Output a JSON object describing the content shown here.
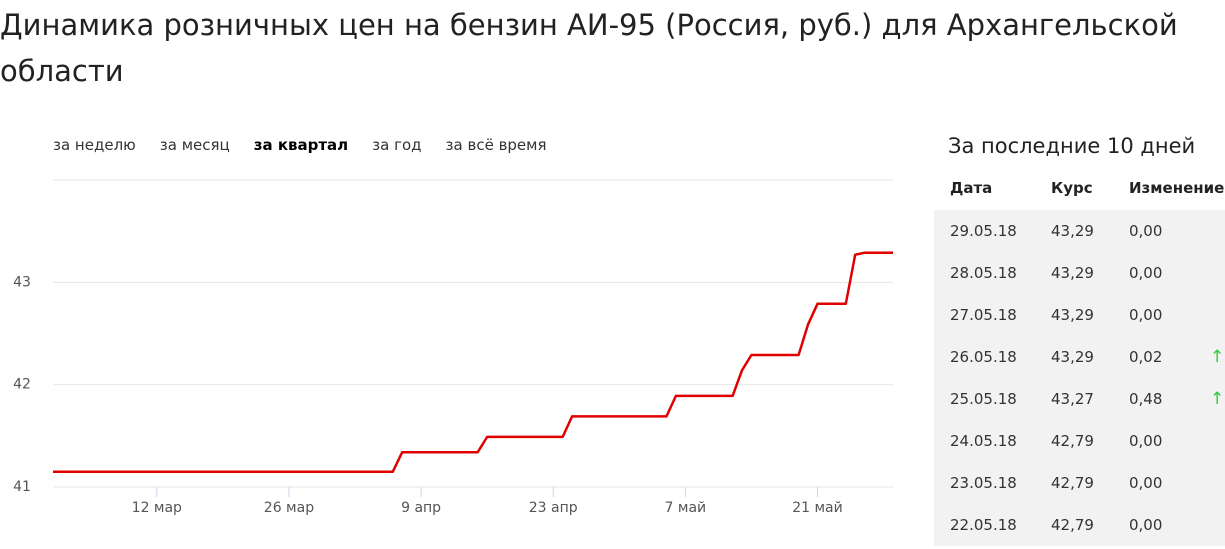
{
  "header": {
    "title": "Динамика розничных цен на бензин АИ-95 (Россия, руб.) для Архангельской области"
  },
  "tabs": {
    "items": [
      "за неделю",
      "за месяц",
      "за квартал",
      "за год",
      "за всё время"
    ],
    "active": 2
  },
  "chart_data": {
    "type": "line",
    "color": "#e00000",
    "grid": true,
    "x": [
      "2018-03-01",
      "2018-04-06",
      "2018-04-07",
      "2018-04-15",
      "2018-04-16",
      "2018-04-24",
      "2018-04-25",
      "2018-05-05",
      "2018-05-06",
      "2018-05-12",
      "2018-05-13",
      "2018-05-14",
      "2018-05-19",
      "2018-05-20",
      "2018-05-21",
      "2018-05-24",
      "2018-05-25",
      "2018-05-26",
      "2018-05-29"
    ],
    "values": [
      41.15,
      41.15,
      41.34,
      41.34,
      41.49,
      41.49,
      41.69,
      41.69,
      41.89,
      41.89,
      42.14,
      42.29,
      42.29,
      42.59,
      42.79,
      42.79,
      43.27,
      43.29,
      43.29
    ],
    "xlim": [
      "2018-03-01",
      "2018-05-29"
    ],
    "xticks": [
      {
        "value": "2018-03-12",
        "label": "12 мар"
      },
      {
        "value": "2018-03-26",
        "label": "26 мар"
      },
      {
        "value": "2018-04-09",
        "label": "9 апр"
      },
      {
        "value": "2018-04-23",
        "label": "23 апр"
      },
      {
        "value": "2018-05-07",
        "label": "7 май"
      },
      {
        "value": "2018-05-21",
        "label": "21 май"
      }
    ],
    "ylim": [
      41,
      44
    ],
    "yticks": [
      41,
      42,
      43
    ]
  },
  "table": {
    "title": "За последние 10 дней",
    "columns": [
      "Дата",
      "Курс",
      "Изменение"
    ],
    "rows": [
      {
        "cells": [
          "29.05.18",
          "43,29",
          "0,00"
        ]
      },
      {
        "cells": [
          "28.05.18",
          "43,29",
          "0,00"
        ]
      },
      {
        "cells": [
          "27.05.18",
          "43,29",
          "0,00"
        ]
      },
      {
        "cells": [
          "26.05.18",
          "43,29",
          "0,02"
        ],
        "arrow": "↑"
      },
      {
        "cells": [
          "25.05.18",
          "43,27",
          "0,48"
        ],
        "arrow": "↑"
      },
      {
        "cells": [
          "24.05.18",
          "42,79",
          "0,00"
        ]
      },
      {
        "cells": [
          "23.05.18",
          "42,79",
          "0,00"
        ]
      },
      {
        "cells": [
          "22.05.18",
          "42,79",
          "0,00"
        ]
      }
    ]
  }
}
